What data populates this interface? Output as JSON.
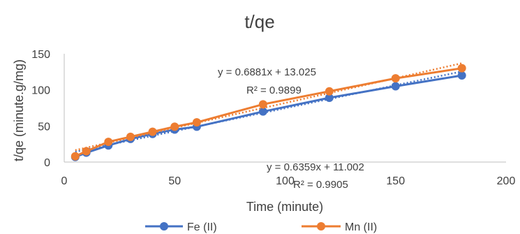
{
  "chart_data": {
    "type": "scatter",
    "title": "t/qe",
    "xlabel": "Time (minute)",
    "ylabel": "t/qe (minute.g/mg)",
    "xlim": [
      0,
      200
    ],
    "ylim": [
      0,
      150
    ],
    "xticks": [
      0,
      50,
      100,
      150,
      200
    ],
    "yticks": [
      0,
      50,
      100,
      150
    ],
    "grid": false,
    "legend_position": "bottom",
    "series": [
      {
        "name": "Fe (II)",
        "color": "#4472C4",
        "x": [
          5,
          10,
          20,
          30,
          40,
          50,
          60,
          90,
          120,
          150,
          180
        ],
        "y": [
          7,
          13,
          23,
          32,
          39,
          45,
          49,
          70,
          89,
          105,
          120
        ],
        "trendline": {
          "slope": 0.6359,
          "intercept": 11.002,
          "equation": "y = 0.6359x + 11.002",
          "r2": "R² = 0.9905"
        }
      },
      {
        "name": "Mn (II)",
        "color": "#ED7D31",
        "x": [
          5,
          10,
          20,
          30,
          40,
          50,
          60,
          90,
          120,
          150,
          180
        ],
        "y": [
          8,
          15,
          28,
          35,
          42,
          49,
          55,
          80,
          98,
          116,
          130
        ],
        "trendline": {
          "slope": 0.6881,
          "intercept": 13.025,
          "equation": "y = 0.6881x + 13.025",
          "r2": "R² = 0.9899"
        }
      }
    ]
  }
}
